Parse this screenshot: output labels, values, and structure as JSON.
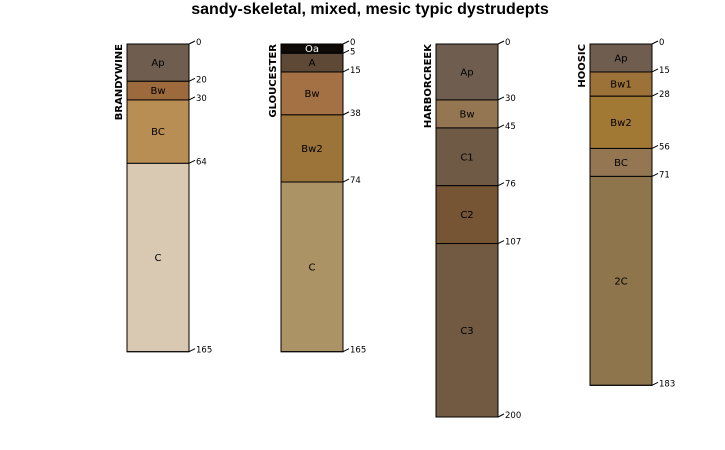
{
  "chart_data": {
    "type": "soil-profile",
    "title": "sandy-skeletal, mixed, mesic typic dystrudepts",
    "depth_units": "cm",
    "depth_range": [
      0,
      200
    ],
    "profiles": [
      {
        "name": "BRANDYWINE",
        "max_depth": 165,
        "horizons": [
          {
            "name": "Ap",
            "top": 0,
            "bottom": 20,
            "color": "#6f5e4f"
          },
          {
            "name": "Bw",
            "top": 20,
            "bottom": 30,
            "color": "#9c6a3c"
          },
          {
            "name": "BC",
            "top": 30,
            "bottom": 64,
            "color": "#b98e55"
          },
          {
            "name": "C",
            "top": 64,
            "bottom": 165,
            "color": "#d9c8b2"
          }
        ],
        "depth_labels": [
          "0",
          "20",
          "30",
          "64",
          "165"
        ]
      },
      {
        "name": "GLOUCESTER",
        "max_depth": 165,
        "horizons": [
          {
            "name": "Oa",
            "top": 0,
            "bottom": 5,
            "color": "#0d0a08"
          },
          {
            "name": "A",
            "top": 5,
            "bottom": 15,
            "color": "#5d4936"
          },
          {
            "name": "Bw",
            "top": 15,
            "bottom": 38,
            "color": "#a37143"
          },
          {
            "name": "Bw2",
            "top": 38,
            "bottom": 74,
            "color": "#9c7338"
          },
          {
            "name": "C",
            "top": 74,
            "bottom": 165,
            "color": "#ab9365"
          }
        ],
        "depth_labels": [
          "0",
          "5",
          "15",
          "38",
          "74",
          "165"
        ]
      },
      {
        "name": "HARBORCREEK",
        "max_depth": 200,
        "horizons": [
          {
            "name": "Ap",
            "top": 0,
            "bottom": 30,
            "color": "#6f5e4f"
          },
          {
            "name": "Bw",
            "top": 30,
            "bottom": 45,
            "color": "#957652"
          },
          {
            "name": "C1",
            "top": 45,
            "bottom": 76,
            "color": "#6e5a45"
          },
          {
            "name": "C2",
            "top": 76,
            "bottom": 107,
            "color": "#765535"
          },
          {
            "name": "C3",
            "top": 107,
            "bottom": 200,
            "color": "#715a41"
          }
        ],
        "depth_labels": [
          "0",
          "30",
          "45",
          "76",
          "107",
          "200"
        ]
      },
      {
        "name": "HOOSIC",
        "max_depth": 183,
        "horizons": [
          {
            "name": "Ap",
            "top": 0,
            "bottom": 15,
            "color": "#6f5e4f"
          },
          {
            "name": "Bw1",
            "top": 15,
            "bottom": 28,
            "color": "#9c7238"
          },
          {
            "name": "Bw2",
            "top": 28,
            "bottom": 56,
            "color": "#a27835"
          },
          {
            "name": "BC",
            "top": 56,
            "bottom": 71,
            "color": "#957652"
          },
          {
            "name": "2C",
            "top": 71,
            "bottom": 183,
            "color": "#8e754c"
          }
        ],
        "depth_labels": [
          "0",
          "15",
          "28",
          "56",
          "71",
          "183"
        ]
      }
    ]
  }
}
